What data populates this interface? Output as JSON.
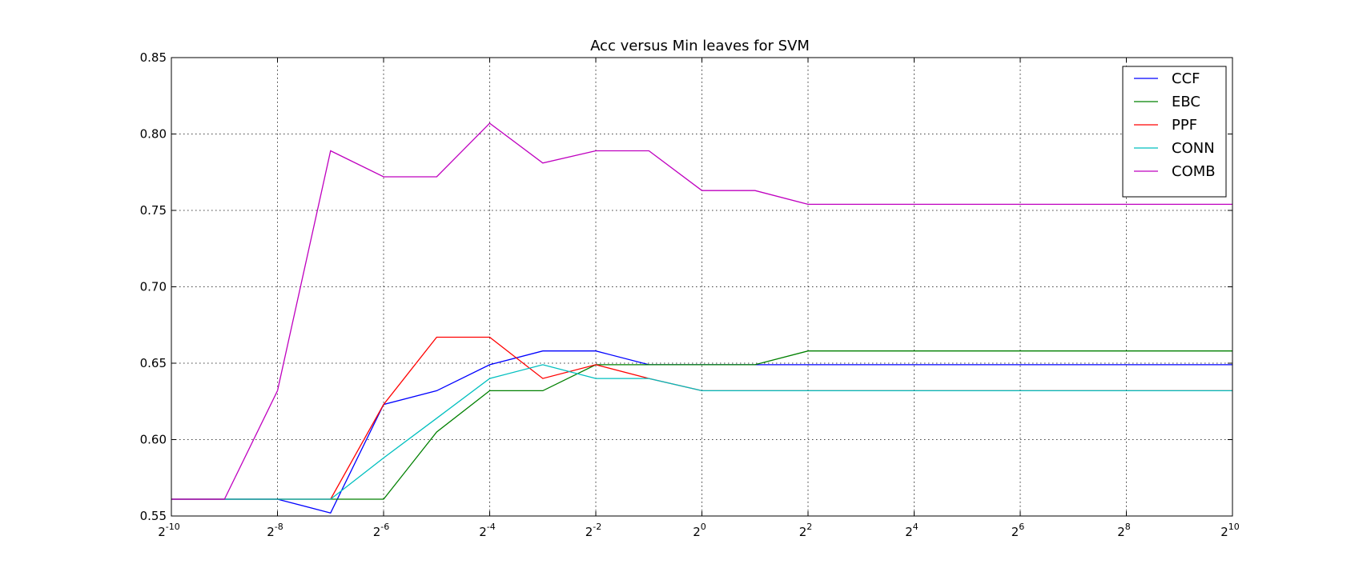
{
  "chart_data": {
    "type": "line",
    "title": "Acc versus Min leaves for SVM",
    "xlabel": "",
    "ylabel": "",
    "x_scale": "log2",
    "x_tick_base": "2",
    "x_tick_exponents": [
      "-10",
      "-8",
      "-6",
      "-4",
      "-2",
      "0",
      "2",
      "4",
      "6",
      "8",
      "10"
    ],
    "xlim_exponent": [
      -10,
      10
    ],
    "ylim": [
      0.55,
      0.85
    ],
    "y_ticks": [
      "0.55",
      "0.60",
      "0.65",
      "0.70",
      "0.75",
      "0.80",
      "0.85"
    ],
    "grid": true,
    "legend_position": "top-right",
    "x_exponents": [
      -10,
      -9,
      -8,
      -7,
      -6,
      -5,
      -4,
      -3,
      -2,
      -1,
      0,
      1,
      2,
      3,
      4,
      5,
      6,
      7,
      8,
      9,
      10
    ],
    "series": [
      {
        "name": "CCF",
        "color": "#0000ff",
        "values": [
          0.561,
          0.561,
          0.561,
          0.552,
          0.623,
          0.632,
          0.649,
          0.658,
          0.658,
          0.649,
          0.649,
          0.649,
          0.649,
          0.649,
          0.649,
          0.649,
          0.649,
          0.649,
          0.649,
          0.649,
          0.649
        ]
      },
      {
        "name": "EBC",
        "color": "#008000",
        "values": [
          0.561,
          0.561,
          0.561,
          0.561,
          0.561,
          0.605,
          0.632,
          0.632,
          0.649,
          0.649,
          0.649,
          0.649,
          0.658,
          0.658,
          0.658,
          0.658,
          0.658,
          0.658,
          0.658,
          0.658,
          0.658
        ]
      },
      {
        "name": "PPF",
        "color": "#ff0000",
        "values": [
          0.561,
          0.561,
          0.561,
          0.561,
          0.623,
          0.667,
          0.667,
          0.64,
          0.649,
          0.64,
          0.632,
          0.632,
          0.632,
          0.632,
          0.632,
          0.632,
          0.632,
          0.632,
          0.632,
          0.632,
          0.632
        ]
      },
      {
        "name": "CONN",
        "color": "#00bfbf",
        "values": [
          0.561,
          0.561,
          0.561,
          0.561,
          0.588,
          0.614,
          0.64,
          0.649,
          0.64,
          0.64,
          0.632,
          0.632,
          0.632,
          0.632,
          0.632,
          0.632,
          0.632,
          0.632,
          0.632,
          0.632,
          0.632
        ]
      },
      {
        "name": "COMB",
        "color": "#bf00bf",
        "values": [
          0.561,
          0.561,
          0.632,
          0.789,
          0.772,
          0.772,
          0.807,
          0.781,
          0.789,
          0.789,
          0.763,
          0.763,
          0.754,
          0.754,
          0.754,
          0.754,
          0.754,
          0.754,
          0.754,
          0.754,
          0.754
        ]
      }
    ]
  }
}
